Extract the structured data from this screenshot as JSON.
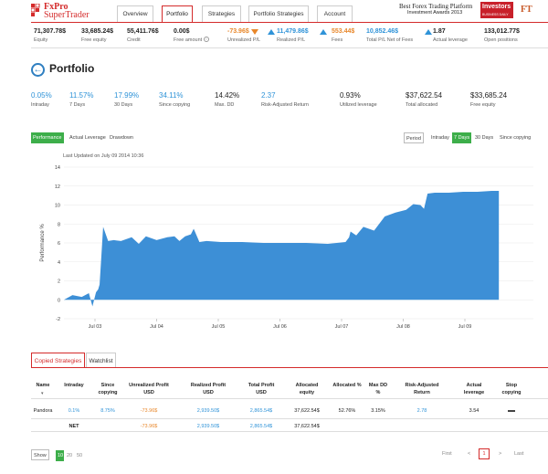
{
  "header": {
    "logo_line1": "FxPro",
    "logo_line2": "SuperTrader",
    "nav": [
      "Overview",
      "Portfolio",
      "Strategies",
      "Portfolio Strategies",
      "Account"
    ],
    "award_line1": "Best Forex Trading Platform",
    "award_line2": "Investment Awards 2013",
    "ibd_text": "Investors",
    "ibd_sub": "BUSINESS DAILY",
    "ft_text": "FT"
  },
  "stats": [
    {
      "value": "71,307.78$",
      "label": "Equity"
    },
    {
      "value": "33,685.24$",
      "label": "Free equity"
    },
    {
      "value": "55,411.76$",
      "label": "Credit"
    },
    {
      "value": "0.00$",
      "label": "Free amount"
    },
    {
      "value": "-73.96$",
      "label": "Unrealized P/L"
    },
    {
      "value": "11,479.86$",
      "label": "Realized P/L"
    },
    {
      "value": "553.44$",
      "label": "Fees"
    },
    {
      "value": "10,852.46$",
      "label": "Total P/L Net of Fees"
    },
    {
      "value": "1.87",
      "label": "Actual leverage"
    },
    {
      "value": "133,012.77$",
      "label": "Open positions"
    }
  ],
  "page_title": "Portfolio",
  "metrics": [
    {
      "value": "0.05%",
      "label": "Intraday"
    },
    {
      "value": "11.57%",
      "label": "7 Days"
    },
    {
      "value": "17.99%",
      "label": "30 Days"
    },
    {
      "value": "34.11%",
      "label": "Since copying"
    },
    {
      "value": "14.42%",
      "label": "Max. DD"
    },
    {
      "value": "2.37",
      "label": "Risk-Adjusted Return"
    },
    {
      "value": "0.93%",
      "label": "Utilized leverage"
    },
    {
      "value": "$37,622.54",
      "label": "Total allocated"
    },
    {
      "value": "$33,685.24",
      "label": "Free equity"
    }
  ],
  "chart_tabs": [
    "Performance",
    "Actual Leverage",
    "Drawdown"
  ],
  "period_controls": {
    "label": "Period",
    "options": [
      "Intraday",
      "7 Days",
      "30 Days",
      "Since copying"
    ],
    "selected": "7 Days"
  },
  "last_updated": "Last Updated on July 09 2014 10:36",
  "chart_data": {
    "type": "area",
    "ylabel": "Performance %",
    "ylim": [
      -2,
      14
    ],
    "yticks": [
      -2,
      0,
      2,
      4,
      6,
      8,
      10,
      12,
      14
    ],
    "xticks": [
      "Jul 03",
      "Jul 04",
      "Jul 05",
      "Jul 06",
      "Jul 07",
      "Jul 08",
      "Jul 09"
    ],
    "color": "#3d8fd6",
    "x": [
      0.0,
      0.12,
      0.25,
      0.35,
      0.4,
      0.45,
      0.48,
      0.5,
      0.52,
      0.55,
      0.62,
      0.7,
      0.8,
      0.95,
      1.05,
      1.15,
      1.3,
      1.45,
      1.55,
      1.62,
      1.7,
      1.78,
      1.82,
      1.9,
      2.0,
      2.2,
      2.5,
      2.8,
      3.1,
      3.4,
      3.7,
      3.95,
      4.0,
      4.02,
      4.1,
      4.2,
      4.35,
      4.5,
      4.65,
      4.8,
      4.9,
      5.0,
      5.05,
      5.1,
      5.2,
      5.4,
      5.6,
      5.8,
      6.0,
      6.1
    ],
    "y": [
      0.0,
      0.5,
      0.3,
      0.7,
      -0.7,
      0.8,
      1.1,
      1.6,
      4.0,
      7.7,
      6.2,
      6.3,
      6.2,
      6.6,
      5.9,
      6.7,
      6.3,
      6.6,
      6.7,
      6.2,
      6.7,
      6.9,
      7.5,
      6.1,
      6.2,
      6.1,
      6.1,
      6.0,
      6.0,
      6.0,
      5.9,
      6.1,
      6.6,
      7.2,
      6.8,
      7.7,
      7.3,
      8.8,
      9.2,
      9.5,
      10.1,
      10.0,
      9.6,
      11.2,
      11.3,
      11.3,
      11.4,
      11.4,
      11.5,
      11.5
    ]
  },
  "lower_tabs": [
    "Copied Strategies",
    "Watchlist"
  ],
  "table": {
    "headers": [
      "Name",
      "Intraday",
      "Since copying",
      "Unrealized Profit USD",
      "Realized Profit USD",
      "Total Profit USD",
      "Allocated equity",
      "Allocated %",
      "Max DD %",
      "Risk-Adjusted Return",
      "Actual leverage",
      "Stop copying"
    ],
    "rows": [
      [
        "Pandora",
        "0.1%",
        "8.75%",
        "-73.96$",
        "2,939.50$",
        "2,865.54$",
        "37,622.54$",
        "52.76%",
        "3.15%",
        "2.78",
        "3.54",
        ""
      ],
      [
        "",
        "NET",
        "",
        "-73.96$",
        "2,939.50$",
        "2,865.54$",
        "37,622.54$",
        "",
        "",
        "",
        "",
        ""
      ]
    ]
  },
  "footer": {
    "show_label": "Show",
    "page_sizes": [
      "10",
      "20",
      "50"
    ],
    "selected_size": "10",
    "pagination": [
      "First",
      "<",
      "1",
      ">",
      "Last"
    ]
  }
}
